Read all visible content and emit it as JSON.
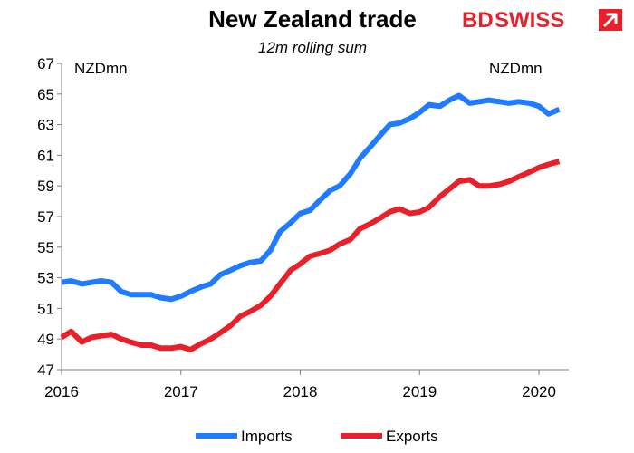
{
  "brand": {
    "logo_part1": "BD",
    "logo_part2": "SWISS",
    "logo_color": "#e8202a"
  },
  "chart_data": {
    "type": "line",
    "title": "New Zealand trade",
    "subtitle": "12m rolling sum",
    "y_unit_left": "NZDmn",
    "y_unit_right": "NZDmn",
    "ylim": [
      47,
      67
    ],
    "yticks": [
      47,
      49,
      51,
      53,
      55,
      57,
      59,
      61,
      63,
      65,
      67
    ],
    "xlim": [
      2016.0,
      2020.25
    ],
    "xticks": [
      {
        "value": 2016,
        "label": "2016"
      },
      {
        "value": 2017,
        "label": "2017"
      },
      {
        "value": 2018,
        "label": "2018"
      },
      {
        "value": 2019,
        "label": "2019"
      },
      {
        "value": 2020,
        "label": "2020"
      }
    ],
    "grid": false,
    "legend_position": "bottom",
    "series": [
      {
        "name": "Imports",
        "color": "#1f7bff",
        "points": [
          [
            2016.0,
            52.7
          ],
          [
            2016.08,
            52.8
          ],
          [
            2016.17,
            52.6
          ],
          [
            2016.25,
            52.7
          ],
          [
            2016.33,
            52.8
          ],
          [
            2016.42,
            52.7
          ],
          [
            2016.5,
            52.1
          ],
          [
            2016.58,
            51.9
          ],
          [
            2016.67,
            51.9
          ],
          [
            2016.75,
            51.9
          ],
          [
            2016.83,
            51.7
          ],
          [
            2016.92,
            51.6
          ],
          [
            2017.0,
            51.8
          ],
          [
            2017.08,
            52.1
          ],
          [
            2017.17,
            52.4
          ],
          [
            2017.25,
            52.6
          ],
          [
            2017.33,
            53.2
          ],
          [
            2017.42,
            53.5
          ],
          [
            2017.5,
            53.8
          ],
          [
            2017.58,
            54.0
          ],
          [
            2017.67,
            54.1
          ],
          [
            2017.75,
            54.8
          ],
          [
            2017.83,
            56.0
          ],
          [
            2017.92,
            56.6
          ],
          [
            2018.0,
            57.2
          ],
          [
            2018.08,
            57.4
          ],
          [
            2018.17,
            58.1
          ],
          [
            2018.25,
            58.7
          ],
          [
            2018.33,
            59.0
          ],
          [
            2018.42,
            59.8
          ],
          [
            2018.5,
            60.8
          ],
          [
            2018.58,
            61.5
          ],
          [
            2018.67,
            62.3
          ],
          [
            2018.75,
            63.0
          ],
          [
            2018.83,
            63.1
          ],
          [
            2018.92,
            63.4
          ],
          [
            2019.0,
            63.8
          ],
          [
            2019.08,
            64.3
          ],
          [
            2019.17,
            64.2
          ],
          [
            2019.25,
            64.6
          ],
          [
            2019.33,
            64.9
          ],
          [
            2019.42,
            64.4
          ],
          [
            2019.5,
            64.5
          ],
          [
            2019.58,
            64.6
          ],
          [
            2019.67,
            64.5
          ],
          [
            2019.75,
            64.4
          ],
          [
            2019.83,
            64.5
          ],
          [
            2019.92,
            64.4
          ],
          [
            2020.0,
            64.2
          ],
          [
            2020.08,
            63.7
          ],
          [
            2020.17,
            64.0
          ]
        ]
      },
      {
        "name": "Exports",
        "color": "#e8202a",
        "points": [
          [
            2016.0,
            49.1
          ],
          [
            2016.08,
            49.5
          ],
          [
            2016.17,
            48.8
          ],
          [
            2016.25,
            49.1
          ],
          [
            2016.33,
            49.2
          ],
          [
            2016.42,
            49.3
          ],
          [
            2016.5,
            49.0
          ],
          [
            2016.58,
            48.8
          ],
          [
            2016.67,
            48.6
          ],
          [
            2016.75,
            48.6
          ],
          [
            2016.83,
            48.4
          ],
          [
            2016.92,
            48.4
          ],
          [
            2017.0,
            48.5
          ],
          [
            2017.08,
            48.3
          ],
          [
            2017.17,
            48.7
          ],
          [
            2017.25,
            49.0
          ],
          [
            2017.33,
            49.4
          ],
          [
            2017.42,
            49.9
          ],
          [
            2017.5,
            50.5
          ],
          [
            2017.58,
            50.8
          ],
          [
            2017.67,
            51.2
          ],
          [
            2017.75,
            51.8
          ],
          [
            2017.83,
            52.6
          ],
          [
            2017.92,
            53.5
          ],
          [
            2018.0,
            53.9
          ],
          [
            2018.08,
            54.4
          ],
          [
            2018.17,
            54.6
          ],
          [
            2018.25,
            54.8
          ],
          [
            2018.33,
            55.2
          ],
          [
            2018.42,
            55.5
          ],
          [
            2018.5,
            56.2
          ],
          [
            2018.58,
            56.5
          ],
          [
            2018.67,
            56.9
          ],
          [
            2018.75,
            57.3
          ],
          [
            2018.83,
            57.5
          ],
          [
            2018.92,
            57.2
          ],
          [
            2019.0,
            57.3
          ],
          [
            2019.08,
            57.6
          ],
          [
            2019.17,
            58.3
          ],
          [
            2019.25,
            58.8
          ],
          [
            2019.33,
            59.3
          ],
          [
            2019.42,
            59.4
          ],
          [
            2019.5,
            59.0
          ],
          [
            2019.58,
            59.0
          ],
          [
            2019.67,
            59.1
          ],
          [
            2019.75,
            59.3
          ],
          [
            2019.83,
            59.6
          ],
          [
            2019.92,
            59.9
          ],
          [
            2020.0,
            60.2
          ],
          [
            2020.08,
            60.4
          ],
          [
            2020.17,
            60.6
          ]
        ]
      }
    ]
  }
}
